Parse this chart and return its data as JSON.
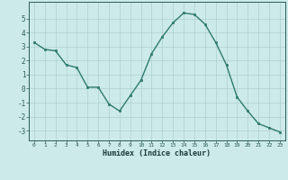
{
  "x": [
    0,
    1,
    2,
    3,
    4,
    5,
    6,
    7,
    8,
    9,
    10,
    11,
    12,
    13,
    14,
    15,
    16,
    17,
    18,
    19,
    20,
    21,
    22,
    23
  ],
  "y": [
    3.3,
    2.8,
    2.7,
    1.7,
    1.5,
    0.1,
    0.1,
    -1.1,
    -1.6,
    -0.5,
    0.6,
    2.5,
    3.7,
    4.7,
    5.4,
    5.3,
    4.6,
    3.3,
    1.7,
    -0.6,
    -1.6,
    -2.5,
    -2.8,
    -3.1
  ],
  "xlabel": "Humidex (Indice chaleur)",
  "xlim": [
    -0.5,
    23.5
  ],
  "ylim": [
    -3.7,
    6.2
  ],
  "yticks": [
    -3,
    -2,
    -1,
    0,
    1,
    2,
    3,
    4,
    5
  ],
  "xticks": [
    0,
    1,
    2,
    3,
    4,
    5,
    6,
    7,
    8,
    9,
    10,
    11,
    12,
    13,
    14,
    15,
    16,
    17,
    18,
    19,
    20,
    21,
    22,
    23
  ],
  "line_color": "#2d7a6e",
  "marker_color": "#2d7a6e",
  "bg_color": "#cdeaea",
  "grid_color": "#aecfcf",
  "tick_color": "#2d5a5a",
  "label_color": "#1a3a3a",
  "font_family": "monospace"
}
